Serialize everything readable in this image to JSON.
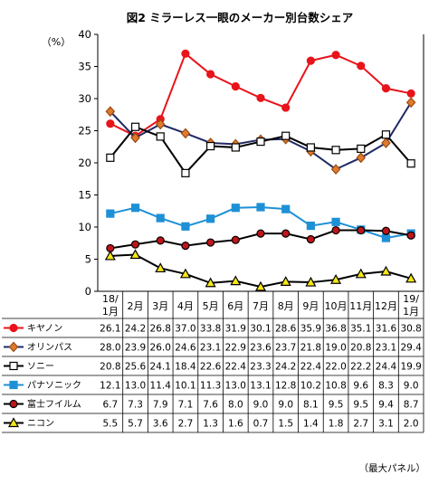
{
  "chart_data": {
    "type": "line",
    "title": "図2 ミラーレス一眼のメーカー別台数シェア",
    "ylabel": "（%）",
    "ylim": [
      0,
      40
    ],
    "yticks": [
      0,
      5,
      10,
      15,
      20,
      25,
      30,
      35,
      40
    ],
    "grid": false,
    "legend": "table-left",
    "note": "（最大パネル）",
    "categories": [
      [
        "18/",
        "1月"
      ],
      [
        "2月"
      ],
      [
        "3月"
      ],
      [
        "4月"
      ],
      [
        "5月"
      ],
      [
        "6月"
      ],
      [
        "7月"
      ],
      [
        "8月"
      ],
      [
        "9月"
      ],
      [
        "10月"
      ],
      [
        "11月"
      ],
      [
        "12月"
      ],
      [
        "19/",
        "1月"
      ]
    ],
    "series": [
      {
        "name": "キヤノン",
        "marker": "circle",
        "color": "#e8141b",
        "fill": "#e8141b",
        "stroke": "#e8141b",
        "values": [
          26.1,
          24.2,
          26.8,
          37.0,
          33.8,
          31.9,
          30.1,
          28.6,
          35.9,
          36.8,
          35.1,
          31.6,
          30.8
        ]
      },
      {
        "name": "オリンパス",
        "marker": "diamond",
        "color": "#1f2a64",
        "fill": "#e07a2c",
        "stroke": "#9a4a12",
        "values": [
          28.0,
          23.9,
          26.0,
          24.6,
          23.1,
          22.9,
          23.6,
          23.7,
          21.8,
          19.0,
          20.8,
          23.1,
          29.4
        ]
      },
      {
        "name": "ソニー",
        "marker": "square-open",
        "color": "#000000",
        "fill": "#ffffff",
        "stroke": "#000000",
        "values": [
          20.8,
          25.6,
          24.1,
          18.4,
          22.6,
          22.4,
          23.3,
          24.2,
          22.4,
          22.0,
          22.2,
          24.4,
          19.9
        ]
      },
      {
        "name": "パナソニック",
        "marker": "square",
        "color": "#1e90d6",
        "fill": "#1e90d6",
        "stroke": "#1e90d6",
        "values": [
          12.1,
          13.0,
          11.4,
          10.1,
          11.3,
          13.0,
          13.1,
          12.8,
          10.2,
          10.8,
          9.6,
          8.3,
          9.0
        ]
      },
      {
        "name": "富士フイルム",
        "marker": "circle",
        "color": "#000000",
        "fill": "#c0141b",
        "stroke": "#000000",
        "values": [
          6.7,
          7.3,
          7.9,
          7.1,
          7.6,
          8.0,
          9.0,
          9.0,
          8.1,
          9.5,
          9.5,
          9.4,
          8.7
        ]
      },
      {
        "name": "ニコン",
        "marker": "triangle",
        "color": "#000000",
        "fill": "#f5e616",
        "stroke": "#000000",
        "values": [
          5.5,
          5.7,
          3.6,
          2.7,
          1.3,
          1.6,
          0.7,
          1.5,
          1.4,
          1.8,
          2.7,
          3.1,
          2.0
        ]
      }
    ]
  }
}
